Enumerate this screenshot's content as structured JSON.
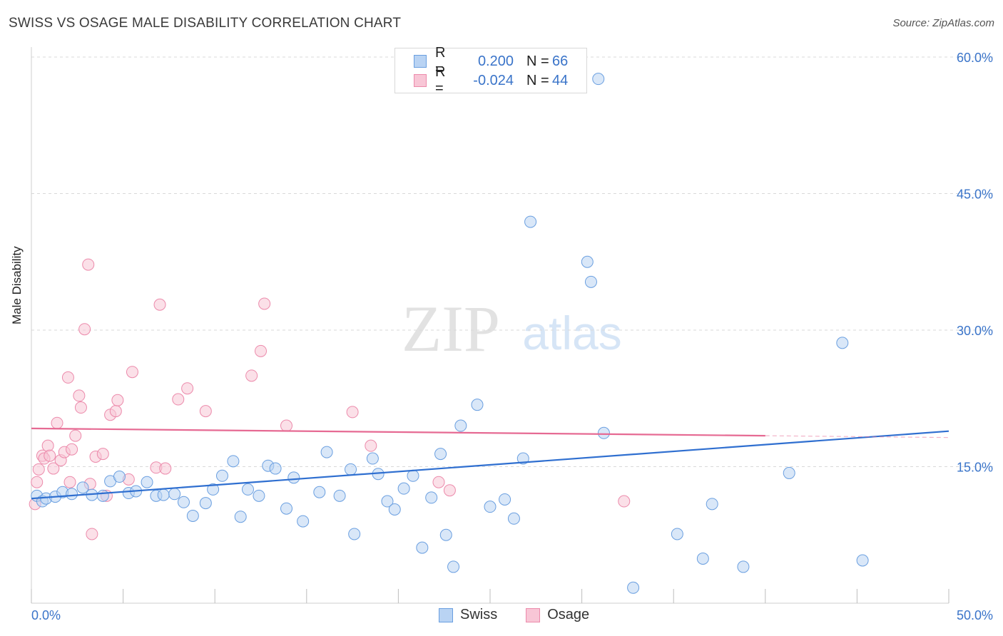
{
  "title": "SWISS VS OSAGE MALE DISABILITY CORRELATION CHART",
  "source": "Source: ZipAtlas.com",
  "watermark": {
    "zip": "ZIP",
    "atlas": "atlas"
  },
  "colors": {
    "swiss_fill": "#b9d3f3",
    "swiss_stroke": "#6a9fe0",
    "swiss_line": "#2f6fd0",
    "osage_fill": "#f8c6d6",
    "osage_stroke": "#ec8aab",
    "osage_line": "#e66a93",
    "tick_label": "#3a74c9",
    "grid": "#d9d9d9"
  },
  "legend_top": [
    {
      "series": "Swiss",
      "r_label": "R =",
      "r_value": "0.200",
      "n_label": "N =",
      "n_value": "66"
    },
    {
      "series": "Osage",
      "r_label": "R =",
      "r_value": "-0.024",
      "n_label": "N =",
      "n_value": "44"
    }
  ],
  "legend_bottom": [
    "Swiss",
    "Osage"
  ],
  "chart_data": {
    "type": "scatter",
    "xlabel": "",
    "ylabel": "Male Disability",
    "xlim": [
      0,
      50
    ],
    "ylim": [
      0,
      60
    ],
    "x_tick_labels": {
      "0": "0.0%",
      "50": "50.0%"
    },
    "y_tick_labels": {
      "15": "15.0%",
      "30": "30.0%",
      "45": "45.0%",
      "60": "60.0%"
    },
    "grid": "horizontal dashed",
    "legend": "top-center and bottom-center",
    "series": [
      {
        "name": "Swiss",
        "points": [
          [
            0.3,
            11.8
          ],
          [
            0.6,
            11.2
          ],
          [
            0.8,
            11.5
          ],
          [
            1.3,
            11.7
          ],
          [
            1.7,
            12.2
          ],
          [
            2.2,
            12.0
          ],
          [
            2.8,
            12.7
          ],
          [
            3.3,
            11.9
          ],
          [
            3.9,
            11.8
          ],
          [
            4.3,
            13.4
          ],
          [
            4.8,
            13.9
          ],
          [
            5.3,
            12.1
          ],
          [
            5.7,
            12.3
          ],
          [
            6.3,
            13.3
          ],
          [
            6.8,
            11.8
          ],
          [
            7.2,
            11.9
          ],
          [
            7.8,
            12.0
          ],
          [
            8.3,
            11.1
          ],
          [
            8.8,
            9.6
          ],
          [
            9.5,
            11.0
          ],
          [
            9.9,
            12.5
          ],
          [
            10.4,
            14.0
          ],
          [
            11.0,
            15.6
          ],
          [
            11.4,
            9.5
          ],
          [
            11.8,
            12.5
          ],
          [
            12.4,
            11.8
          ],
          [
            12.9,
            15.1
          ],
          [
            13.3,
            14.8
          ],
          [
            13.9,
            10.4
          ],
          [
            14.3,
            13.8
          ],
          [
            14.8,
            9.0
          ],
          [
            15.7,
            12.2
          ],
          [
            16.1,
            16.6
          ],
          [
            16.8,
            11.8
          ],
          [
            17.4,
            14.7
          ],
          [
            17.6,
            7.6
          ],
          [
            18.6,
            15.9
          ],
          [
            18.9,
            14.2
          ],
          [
            19.4,
            11.2
          ],
          [
            19.8,
            10.3
          ],
          [
            20.3,
            12.6
          ],
          [
            20.8,
            14.0
          ],
          [
            21.3,
            6.1
          ],
          [
            21.8,
            11.6
          ],
          [
            22.3,
            16.4
          ],
          [
            22.6,
            7.5
          ],
          [
            23.0,
            4.0
          ],
          [
            23.4,
            19.5
          ],
          [
            24.3,
            21.8
          ],
          [
            25.0,
            10.6
          ],
          [
            25.8,
            11.4
          ],
          [
            26.3,
            9.3
          ],
          [
            26.8,
            15.9
          ],
          [
            27.2,
            41.9
          ],
          [
            30.3,
            37.5
          ],
          [
            30.5,
            35.3
          ],
          [
            30.9,
            57.6
          ],
          [
            31.2,
            18.7
          ],
          [
            32.8,
            1.7
          ],
          [
            35.2,
            7.6
          ],
          [
            36.6,
            4.9
          ],
          [
            37.1,
            10.9
          ],
          [
            38.8,
            4.0
          ],
          [
            41.3,
            14.3
          ],
          [
            44.2,
            28.6
          ],
          [
            45.3,
            4.7
          ]
        ]
      },
      {
        "name": "Osage",
        "points": [
          [
            0.2,
            10.9
          ],
          [
            0.3,
            13.3
          ],
          [
            0.4,
            14.7
          ],
          [
            0.6,
            16.2
          ],
          [
            0.7,
            15.9
          ],
          [
            0.9,
            17.3
          ],
          [
            1.0,
            16.2
          ],
          [
            1.2,
            14.8
          ],
          [
            1.4,
            19.8
          ],
          [
            1.6,
            15.7
          ],
          [
            1.8,
            16.6
          ],
          [
            2.0,
            24.8
          ],
          [
            2.1,
            13.3
          ],
          [
            2.2,
            16.9
          ],
          [
            2.4,
            18.4
          ],
          [
            2.6,
            22.8
          ],
          [
            2.7,
            21.5
          ],
          [
            2.9,
            30.1
          ],
          [
            3.1,
            37.2
          ],
          [
            3.2,
            13.1
          ],
          [
            3.3,
            7.6
          ],
          [
            3.5,
            16.1
          ],
          [
            3.9,
            16.4
          ],
          [
            4.1,
            11.8
          ],
          [
            4.3,
            20.7
          ],
          [
            4.6,
            21.1
          ],
          [
            4.7,
            22.3
          ],
          [
            5.3,
            13.6
          ],
          [
            5.5,
            25.4
          ],
          [
            6.8,
            14.9
          ],
          [
            7.0,
            32.8
          ],
          [
            7.3,
            14.8
          ],
          [
            8.0,
            22.4
          ],
          [
            8.5,
            23.6
          ],
          [
            9.5,
            21.1
          ],
          [
            12.0,
            25.0
          ],
          [
            12.5,
            27.7
          ],
          [
            12.7,
            32.9
          ],
          [
            13.9,
            19.5
          ],
          [
            17.5,
            21.0
          ],
          [
            18.5,
            17.3
          ],
          [
            22.2,
            13.3
          ],
          [
            22.8,
            12.4
          ],
          [
            32.3,
            11.2
          ]
        ]
      }
    ],
    "trend_lines": [
      {
        "name": "Swiss",
        "from": [
          0,
          11.5
        ],
        "to": [
          50,
          18.9
        ],
        "style": "solid"
      },
      {
        "name": "Osage",
        "from": [
          0,
          19.2
        ],
        "to": [
          40,
          18.4
        ],
        "style": "solid"
      },
      {
        "name": "Osage",
        "from": [
          40,
          18.4
        ],
        "to": [
          50,
          18.2
        ],
        "style": "dashed"
      }
    ]
  }
}
